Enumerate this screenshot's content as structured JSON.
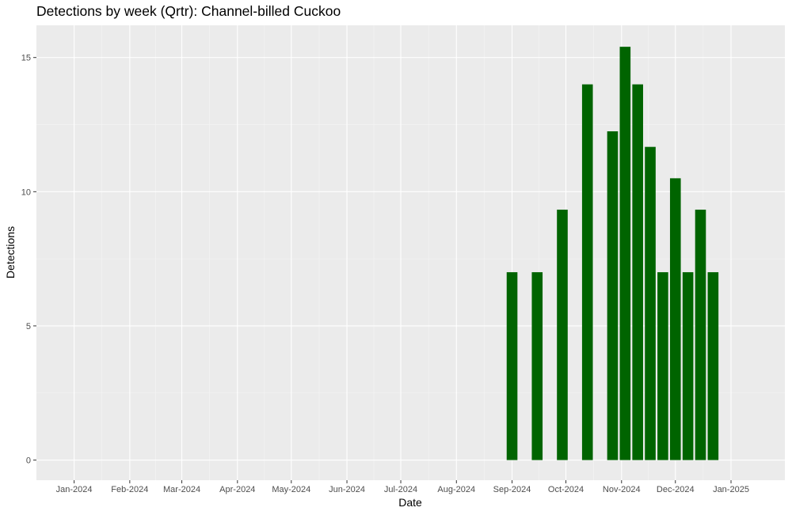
{
  "chart_data": {
    "type": "bar",
    "title": "Detections by week (Qrtr): Channel-billed Cuckoo",
    "xlabel": "Date",
    "ylabel": "Detections",
    "x_ticks": [
      "Jan-2024",
      "Feb-2024",
      "Mar-2024",
      "Apr-2024",
      "May-2024",
      "Jun-2024",
      "Jul-2024",
      "Aug-2024",
      "Sep-2024",
      "Oct-2024",
      "Nov-2024",
      "Dec-2024",
      "Jan-2025"
    ],
    "y_ticks": [
      "0",
      "5",
      "10",
      "15"
    ],
    "ylim": [
      -0.75,
      16.2
    ],
    "xlim": [
      "2023-12-11",
      "2025-01-31"
    ],
    "grid": true,
    "bar_color": "#006400",
    "panel_color": "#ebebeb",
    "series": [
      {
        "x": [
          "2024-09-01",
          "2024-09-15",
          "2024-09-29",
          "2024-10-13",
          "2024-10-27",
          "2024-11-03",
          "2024-11-10",
          "2024-11-17",
          "2024-11-24",
          "2024-12-01",
          "2024-12-08",
          "2024-12-15",
          "2024-12-22"
        ],
        "values": [
          7.0,
          7.0,
          9.33,
          14.0,
          12.25,
          15.4,
          14.0,
          11.67,
          7.0,
          10.5,
          7.0,
          9.33,
          7.0
        ]
      }
    ]
  }
}
